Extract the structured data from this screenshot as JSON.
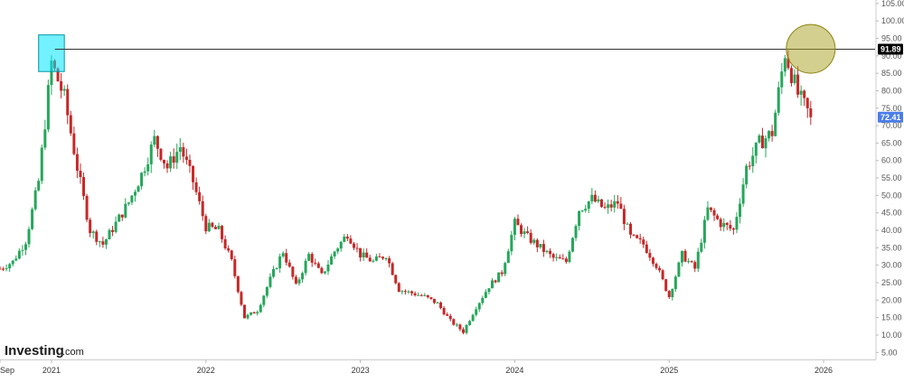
{
  "logo": {
    "main": "Investing",
    "suffix": ".com"
  },
  "chart_data": {
    "type": "candlestick",
    "title": "",
    "xlabel": "",
    "ylabel": "",
    "ylim": [
      3,
      106
    ],
    "grid": false,
    "x_tick_labels": [
      "Sep",
      "2021",
      "2022",
      "2023",
      "2024",
      "2025",
      "2026"
    ],
    "y_tick_labels": [
      "5.00",
      "10.00",
      "15.00",
      "20.00",
      "25.00",
      "30.00",
      "35.00",
      "40.00",
      "45.00",
      "50.00",
      "55.00",
      "60.00",
      "65.00",
      "70.00",
      "75.00",
      "80.00",
      "85.00",
      "90.00",
      "95.00",
      "100.00",
      "105.00"
    ],
    "y_ticks": [
      5,
      10,
      15,
      20,
      25,
      30,
      35,
      40,
      45,
      50,
      55,
      60,
      65,
      70,
      75,
      80,
      85,
      90,
      95,
      100,
      105
    ],
    "x_ticks": [
      "2020-09",
      "2021-01",
      "2022-01",
      "2023-01",
      "2024-01",
      "2025-01",
      "2026-01"
    ],
    "x_range": [
      "2020-09",
      "2026-05"
    ],
    "colors": {
      "up": "#26a65b",
      "down": "#c62828",
      "reference_line": "#333333"
    },
    "horizontal_line": {
      "value": 91.89,
      "label": "91.89",
      "label_bg": "#000000",
      "label_color": "#ffffff"
    },
    "last_price": {
      "value": 72.41,
      "label": "72.41",
      "label_bg": "#4a7de8",
      "label_color": "#ffffff"
    },
    "highlight_box": {
      "from": "2020-12",
      "to": "2021-02",
      "ylim": [
        85.5,
        96
      ],
      "color": "#00e5ff"
    },
    "highlight_circle": {
      "at": "2025-12",
      "value": 92,
      "color": "#a8a020"
    },
    "series": [
      {
        "type": "ohlc-trend",
        "points": [
          [
            "2020-09",
            29
          ],
          [
            "2020-10",
            31
          ],
          [
            "2020-11",
            37
          ],
          [
            "2020-12",
            54
          ],
          [
            "2021-01",
            88
          ],
          [
            "2021-02",
            78
          ],
          [
            "2021-03",
            58
          ],
          [
            "2021-04",
            40
          ],
          [
            "2021-05",
            36
          ],
          [
            "2021-06",
            42
          ],
          [
            "2021-07",
            48
          ],
          [
            "2021-08",
            56
          ],
          [
            "2021-09",
            66
          ],
          [
            "2021-10",
            58
          ],
          [
            "2021-11",
            64
          ],
          [
            "2021-12",
            54
          ],
          [
            "2022-01",
            41
          ],
          [
            "2022-02",
            40
          ],
          [
            "2022-03",
            31
          ],
          [
            "2022-04",
            15
          ],
          [
            "2022-05",
            17
          ],
          [
            "2022-06",
            26
          ],
          [
            "2022-07",
            34
          ],
          [
            "2022-08",
            24
          ],
          [
            "2022-09",
            33
          ],
          [
            "2022-10",
            27
          ],
          [
            "2022-11",
            34
          ],
          [
            "2022-12",
            39
          ],
          [
            "2023-01",
            33
          ],
          [
            "2023-02",
            31
          ],
          [
            "2023-03",
            33
          ],
          [
            "2023-04",
            23
          ],
          [
            "2023-05",
            22
          ],
          [
            "2023-06",
            21
          ],
          [
            "2023-07",
            19
          ],
          [
            "2023-08",
            14
          ],
          [
            "2023-09",
            11
          ],
          [
            "2023-10",
            18
          ],
          [
            "2023-11",
            24
          ],
          [
            "2023-12",
            28
          ],
          [
            "2024-01",
            42
          ],
          [
            "2024-02",
            38
          ],
          [
            "2024-03",
            35
          ],
          [
            "2024-04",
            32
          ],
          [
            "2024-05",
            31
          ],
          [
            "2024-06",
            46
          ],
          [
            "2024-07",
            49
          ],
          [
            "2024-08",
            46
          ],
          [
            "2024-09",
            48
          ],
          [
            "2024-10",
            38
          ],
          [
            "2024-11",
            36
          ],
          [
            "2024-12",
            30
          ],
          [
            "2025-01",
            21
          ],
          [
            "2025-02",
            33
          ],
          [
            "2025-03",
            29
          ],
          [
            "2025-04",
            46
          ],
          [
            "2025-05",
            42
          ],
          [
            "2025-06",
            40
          ],
          [
            "2025-07",
            58
          ],
          [
            "2025-08",
            65
          ],
          [
            "2025-09",
            68
          ],
          [
            "2025-10",
            91
          ],
          [
            "2025-11",
            79
          ],
          [
            "2025-12",
            72.41
          ]
        ]
      }
    ]
  }
}
